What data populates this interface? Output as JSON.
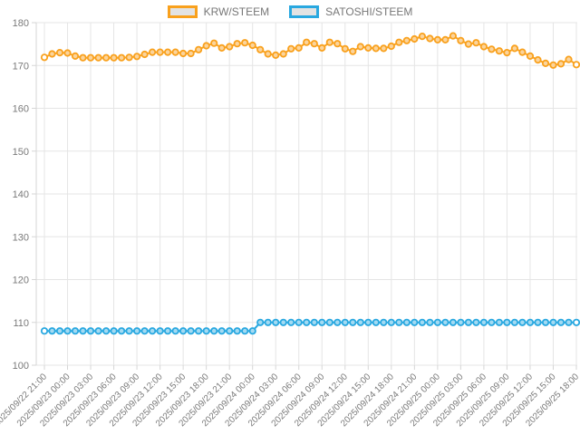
{
  "legend": {
    "items": [
      {
        "label": "KRW/STEEM",
        "color": "#f9a11d",
        "fill": "#e3e3e3"
      },
      {
        "label": "SATOSHI/STEEM",
        "color": "#29a8e0",
        "fill": "#e3e3e3"
      }
    ]
  },
  "chart_data": {
    "type": "line",
    "title": "",
    "xlabel": "",
    "ylabel": "",
    "grid": true,
    "legend_position": "top",
    "ylim": [
      100,
      180
    ],
    "y_ticks": [
      100,
      110,
      120,
      130,
      140,
      150,
      160,
      170,
      180
    ],
    "x_tick_labels": [
      "2025/09/22 21:00",
      "2025/09/23 00:00",
      "2025/09/23 03:00",
      "2025/09/23 06:00",
      "2025/09/23 09:00",
      "2025/09/23 12:00",
      "2025/09/23 15:00",
      "2025/09/23 18:00",
      "2025/09/23 21:00",
      "2025/09/24 00:00",
      "2025/09/24 03:00",
      "2025/09/24 06:00",
      "2025/09/24 09:00",
      "2025/09/24 12:00",
      "2025/09/24 15:00",
      "2025/09/24 18:00",
      "2025/09/24 21:00",
      "2025/09/25 00:00",
      "2025/09/25 03:00",
      "2025/09/25 06:00",
      "2025/09/25 09:00",
      "2025/09/25 12:00",
      "2025/09/25 15:00",
      "2025/09/25 18:00"
    ],
    "points_per_tick_interval": 3,
    "x_interval": "1 hour",
    "series": [
      {
        "name": "KRW/STEEM",
        "color": "#f9a11d",
        "point_fill": "#fbd49c",
        "values": [
          171.9,
          172.7,
          173.0,
          172.9,
          172.2,
          171.8,
          171.8,
          171.8,
          171.8,
          171.8,
          171.8,
          171.9,
          172.1,
          172.6,
          173.1,
          173.1,
          173.1,
          173.1,
          172.8,
          172.8,
          173.7,
          174.6,
          175.2,
          174.1,
          174.4,
          175.1,
          175.3,
          174.7,
          173.7,
          172.7,
          172.4,
          172.7,
          173.9,
          174.1,
          175.4,
          175.1,
          174.1,
          175.4,
          175.1,
          173.9,
          173.3,
          174.4,
          174.1,
          174.0,
          174.0,
          174.5,
          175.4,
          175.8,
          176.2,
          176.8,
          176.3,
          176.0,
          176.0,
          176.9,
          175.8,
          175.0,
          175.3,
          174.4,
          173.8,
          173.4,
          173.0,
          174.0,
          173.1,
          172.2,
          171.3,
          170.5,
          170.1,
          170.4,
          171.4,
          170.2
        ]
      },
      {
        "name": "SATOSHI/STEEM",
        "color": "#29a8e0",
        "point_fill": "#a3daf2",
        "values": [
          108,
          108,
          108,
          108,
          108,
          108,
          108,
          108,
          108,
          108,
          108,
          108,
          108,
          108,
          108,
          108,
          108,
          108,
          108,
          108,
          108,
          108,
          108,
          108,
          108,
          108,
          108,
          108,
          110,
          110,
          110,
          110,
          110,
          110,
          110,
          110,
          110,
          110,
          110,
          110,
          110,
          110,
          110,
          110,
          110,
          110,
          110,
          110,
          110,
          110,
          110,
          110,
          110,
          110,
          110,
          110,
          110,
          110,
          110,
          110,
          110,
          110,
          110,
          110,
          110,
          110,
          110,
          110,
          110,
          110
        ]
      }
    ]
  }
}
